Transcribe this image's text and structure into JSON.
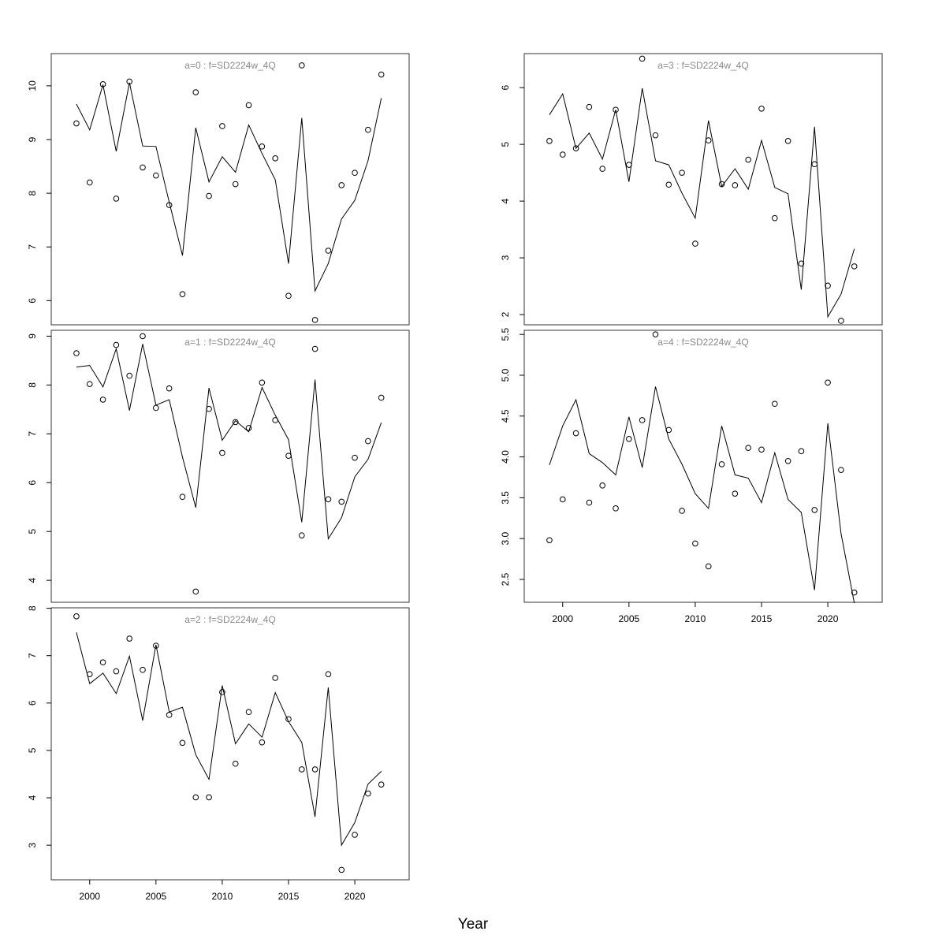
{
  "xlabel": "Year",
  "chart_data": [
    {
      "type": "scatter",
      "title": "a=0  :  f=SD2224w_4Q",
      "x": [
        1999,
        2000,
        2001,
        2002,
        2003,
        2004,
        2005,
        2006,
        2007,
        2008,
        2009,
        2010,
        2011,
        2012,
        2013,
        2014,
        2015,
        2016,
        2017,
        2018,
        2019,
        2020,
        2021,
        2022
      ],
      "series": [
        {
          "kind": "points",
          "values": [
            9.3,
            8.2,
            10.03,
            7.9,
            10.08,
            8.48,
            8.33,
            7.78,
            6.12,
            9.88,
            7.95,
            9.25,
            8.17,
            9.64,
            8.87,
            8.65,
            6.09,
            10.38,
            5.64,
            6.93,
            8.15,
            8.38,
            9.18,
            10.21
          ]
        },
        {
          "kind": "line",
          "values": [
            9.66,
            9.18,
            10.02,
            8.78,
            10.06,
            8.88,
            8.87,
            7.83,
            6.84,
            9.22,
            8.21,
            8.68,
            8.39,
            9.27,
            8.74,
            8.25,
            6.69,
            9.4,
            6.18,
            6.69,
            7.52,
            7.87,
            8.61,
            9.77
          ]
        }
      ],
      "yticks": [
        6,
        7,
        8,
        9,
        10
      ],
      "ylim": [
        5.55,
        10.6
      ]
    },
    {
      "type": "scatter",
      "title": "a=1  :  f=SD2224w_4Q",
      "x": [
        1999,
        2000,
        2001,
        2002,
        2003,
        2004,
        2005,
        2006,
        2007,
        2008,
        2009,
        2010,
        2011,
        2012,
        2013,
        2014,
        2015,
        2016,
        2017,
        2018,
        2019,
        2020,
        2021,
        2022
      ],
      "series": [
        {
          "kind": "points",
          "values": [
            8.65,
            8.02,
            7.7,
            8.82,
            8.19,
            9.0,
            7.53,
            7.93,
            5.71,
            3.77,
            7.51,
            6.61,
            7.24,
            7.12,
            8.05,
            7.28,
            6.55,
            4.92,
            8.74,
            5.66,
            5.61,
            6.51,
            6.85,
            7.74
          ]
        },
        {
          "kind": "line",
          "values": [
            8.37,
            8.4,
            7.96,
            8.74,
            7.48,
            8.84,
            7.59,
            7.7,
            6.52,
            5.49,
            7.94,
            6.87,
            7.27,
            7.04,
            7.95,
            7.38,
            6.88,
            5.19,
            8.11,
            4.85,
            5.28,
            6.12,
            6.48,
            7.23
          ]
        }
      ],
      "yticks": [
        4,
        5,
        6,
        7,
        8,
        9
      ],
      "ylim": [
        3.55,
        9.12
      ]
    },
    {
      "type": "scatter",
      "title": "a=2  :  f=SD2224w_4Q",
      "x": [
        1999,
        2000,
        2001,
        2002,
        2003,
        2004,
        2005,
        2006,
        2007,
        2008,
        2009,
        2010,
        2011,
        2012,
        2013,
        2014,
        2015,
        2016,
        2017,
        2018,
        2019,
        2020,
        2021,
        2022
      ],
      "series": [
        {
          "kind": "points",
          "values": [
            7.83,
            6.61,
            6.86,
            6.67,
            7.36,
            6.7,
            7.21,
            5.75,
            5.16,
            4.01,
            4.01,
            6.23,
            4.72,
            5.81,
            5.17,
            6.53,
            5.66,
            4.6,
            4.6,
            6.61,
            2.48,
            3.22,
            4.09,
            4.28
          ]
        },
        {
          "kind": "line",
          "values": [
            7.49,
            6.41,
            6.63,
            6.2,
            6.99,
            5.63,
            7.23,
            5.81,
            5.91,
            4.91,
            4.39,
            6.37,
            5.14,
            5.56,
            5.28,
            6.22,
            5.61,
            5.17,
            3.6,
            6.33,
            3.0,
            3.48,
            4.29,
            4.56
          ]
        }
      ],
      "yticks": [
        3,
        4,
        5,
        6,
        7,
        8
      ],
      "ylim": [
        2.27,
        8.01
      ]
    },
    {
      "type": "scatter",
      "title": "a=3  :  f=SD2224w_4Q",
      "x": [
        1999,
        2000,
        2001,
        2002,
        2003,
        2004,
        2005,
        2006,
        2007,
        2008,
        2009,
        2010,
        2011,
        2012,
        2013,
        2014,
        2015,
        2016,
        2017,
        2018,
        2019,
        2020,
        2021,
        2022
      ],
      "series": [
        {
          "kind": "points",
          "values": [
            5.06,
            4.82,
            4.93,
            5.66,
            4.57,
            5.61,
            4.64,
            6.51,
            5.16,
            4.29,
            4.5,
            3.25,
            5.07,
            4.3,
            4.28,
            4.73,
            5.63,
            3.7,
            5.06,
            2.9,
            4.65,
            2.51,
            1.89,
            2.85
          ]
        },
        {
          "kind": "line",
          "values": [
            5.52,
            5.89,
            4.93,
            5.2,
            4.74,
            5.61,
            4.34,
            5.99,
            4.71,
            4.64,
            4.14,
            3.7,
            5.42,
            4.26,
            4.57,
            4.21,
            5.07,
            4.24,
            4.13,
            2.44,
            5.31,
            1.96,
            2.36,
            3.16
          ]
        }
      ],
      "yticks": [
        2,
        3,
        4,
        5,
        6
      ],
      "ylim": [
        1.82,
        6.6
      ]
    },
    {
      "type": "scatter",
      "title": "a=4  :  f=SD2224w_4Q",
      "x": [
        1999,
        2000,
        2001,
        2002,
        2003,
        2004,
        2005,
        2006,
        2007,
        2008,
        2009,
        2010,
        2011,
        2012,
        2013,
        2014,
        2015,
        2016,
        2017,
        2018,
        2019,
        2020,
        2021,
        2022
      ],
      "series": [
        {
          "kind": "points",
          "values": [
            2.98,
            3.48,
            4.29,
            3.44,
            3.65,
            3.37,
            4.22,
            4.45,
            5.5,
            4.33,
            3.34,
            2.94,
            2.66,
            3.91,
            3.55,
            4.11,
            4.09,
            4.65,
            3.95,
            4.07,
            3.35,
            4.91,
            3.84,
            2.34
          ]
        },
        {
          "kind": "line",
          "values": [
            3.9,
            4.38,
            4.7,
            4.04,
            3.93,
            3.78,
            4.49,
            3.87,
            4.86,
            4.22,
            3.91,
            3.55,
            3.37,
            4.38,
            3.78,
            3.74,
            3.44,
            4.05,
            3.48,
            3.32,
            2.37,
            4.41,
            3.06,
            2.21
          ]
        }
      ],
      "yticks": [
        2.5,
        3.0,
        3.5,
        4.0,
        4.5,
        5.0,
        5.5
      ],
      "yticklabels": [
        "2.5",
        "3.0",
        "3.5",
        "4.0",
        "4.5",
        "5.0",
        "5.5"
      ],
      "ylim": [
        2.22,
        5.55
      ]
    }
  ],
  "xaxis": {
    "xlim": [
      1997.1,
      2024.1
    ],
    "xticks": [
      2000,
      2005,
      2010,
      2015,
      2020
    ],
    "xticklabels": [
      "2000",
      "2005",
      "2010",
      "2015",
      "2020"
    ]
  }
}
